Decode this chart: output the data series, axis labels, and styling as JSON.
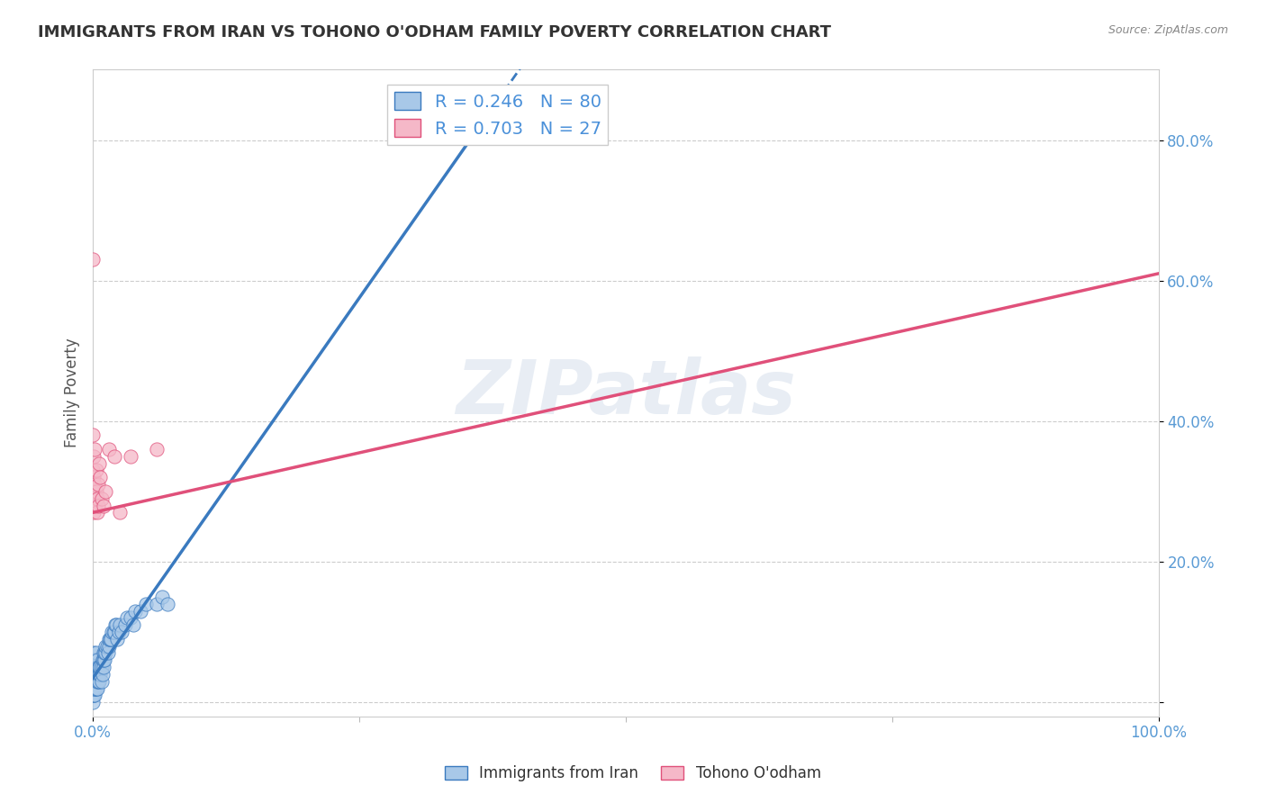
{
  "title": "IMMIGRANTS FROM IRAN VS TOHONO O'ODHAM FAMILY POVERTY CORRELATION CHART",
  "source": "Source: ZipAtlas.com",
  "ylabel": "Family Poverty",
  "legend_iran": "Immigrants from Iran",
  "legend_tohono": "Tohono O'odham",
  "iran_R": "0.246",
  "iran_N": "80",
  "tohono_R": "0.703",
  "tohono_N": "27",
  "iran_color": "#a8c8e8",
  "tohono_color": "#f5b8c8",
  "iran_line_color": "#3a7abf",
  "tohono_line_color": "#e0507a",
  "background_color": "#ffffff",
  "iran_scatter_x": [
    0.0,
    0.0,
    0.0,
    0.0,
    0.0,
    0.0,
    0.0,
    0.0,
    0.001,
    0.001,
    0.001,
    0.001,
    0.001,
    0.001,
    0.001,
    0.001,
    0.001,
    0.001,
    0.001,
    0.002,
    0.002,
    0.002,
    0.002,
    0.002,
    0.002,
    0.002,
    0.003,
    0.003,
    0.003,
    0.003,
    0.003,
    0.004,
    0.004,
    0.004,
    0.004,
    0.004,
    0.005,
    0.005,
    0.005,
    0.006,
    0.006,
    0.006,
    0.007,
    0.007,
    0.008,
    0.008,
    0.009,
    0.009,
    0.01,
    0.01,
    0.01,
    0.011,
    0.011,
    0.012,
    0.012,
    0.013,
    0.014,
    0.015,
    0.015,
    0.016,
    0.017,
    0.018,
    0.019,
    0.02,
    0.021,
    0.022,
    0.023,
    0.024,
    0.025,
    0.027,
    0.03,
    0.032,
    0.035,
    0.038,
    0.04,
    0.045,
    0.05,
    0.06,
    0.065,
    0.07
  ],
  "iran_scatter_y": [
    0.01,
    0.02,
    0.03,
    0.0,
    0.01,
    0.02,
    0.03,
    0.04,
    0.01,
    0.02,
    0.02,
    0.03,
    0.03,
    0.04,
    0.05,
    0.06,
    0.07,
    0.02,
    0.03,
    0.01,
    0.02,
    0.03,
    0.04,
    0.05,
    0.06,
    0.02,
    0.02,
    0.03,
    0.04,
    0.05,
    0.07,
    0.02,
    0.03,
    0.04,
    0.05,
    0.06,
    0.03,
    0.04,
    0.05,
    0.03,
    0.04,
    0.05,
    0.04,
    0.05,
    0.03,
    0.05,
    0.04,
    0.06,
    0.05,
    0.06,
    0.07,
    0.06,
    0.07,
    0.07,
    0.08,
    0.08,
    0.07,
    0.08,
    0.09,
    0.09,
    0.09,
    0.1,
    0.1,
    0.1,
    0.11,
    0.11,
    0.09,
    0.1,
    0.11,
    0.1,
    0.11,
    0.12,
    0.12,
    0.11,
    0.13,
    0.13,
    0.14,
    0.14,
    0.15,
    0.14
  ],
  "tohono_scatter_x": [
    0.0,
    0.0,
    0.0,
    0.0,
    0.001,
    0.001,
    0.001,
    0.001,
    0.002,
    0.002,
    0.002,
    0.003,
    0.003,
    0.004,
    0.004,
    0.005,
    0.005,
    0.006,
    0.007,
    0.008,
    0.01,
    0.012,
    0.015,
    0.02,
    0.025,
    0.035,
    0.06
  ],
  "tohono_scatter_y": [
    0.63,
    0.38,
    0.33,
    0.3,
    0.32,
    0.29,
    0.27,
    0.35,
    0.28,
    0.31,
    0.36,
    0.3,
    0.33,
    0.29,
    0.27,
    0.31,
    0.28,
    0.34,
    0.32,
    0.29,
    0.28,
    0.3,
    0.36,
    0.35,
    0.27,
    0.35,
    0.36
  ],
  "xlim": [
    0.0,
    1.0
  ],
  "ylim": [
    -0.02,
    0.9
  ],
  "ytick_positions": [
    0.0,
    0.2,
    0.4,
    0.6,
    0.8
  ],
  "ytick_labels": [
    "",
    "20.0%",
    "40.0%",
    "60.0%",
    "80.0%"
  ],
  "grid_color": "#cccccc",
  "title_color": "#333333",
  "axis_label_color": "#5a9bd5",
  "iran_line_x_end": 0.35,
  "tohono_line_intercept": 0.27,
  "tohono_line_slope": 0.34
}
